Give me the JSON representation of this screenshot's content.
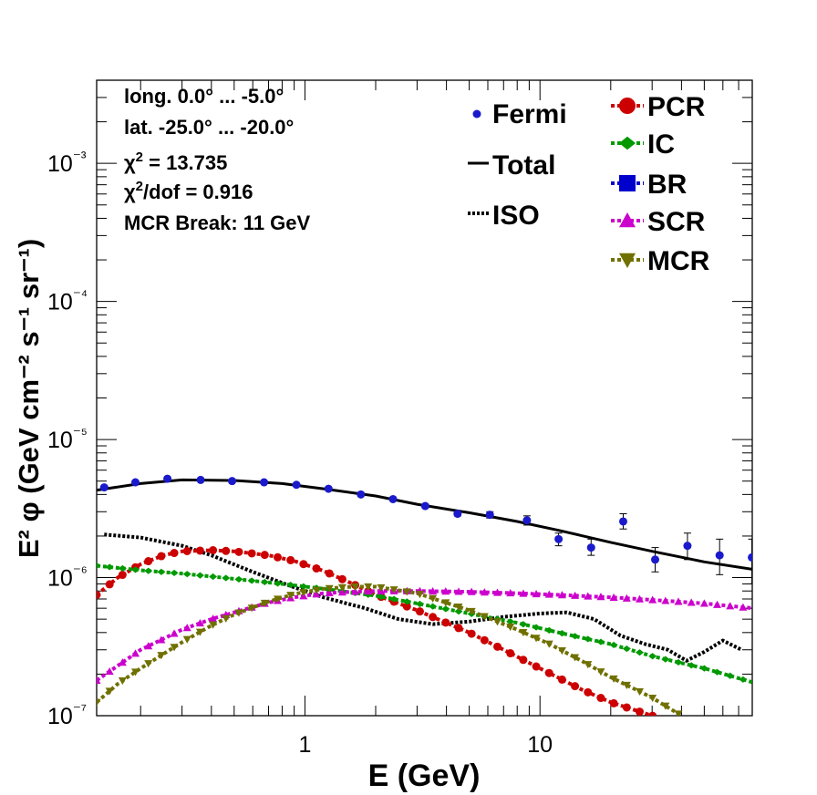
{
  "chart_data": {
    "type": "scatter",
    "title": "",
    "xlabel": "E (GeV)",
    "ylabel": "E² φ (GeV cm⁻² s⁻¹ sr⁻¹)",
    "x_scale": "log",
    "y_scale": "log",
    "xlim": [
      0.13,
      80
    ],
    "ylim": [
      1e-07,
      0.004
    ],
    "x_tick_labels": [
      "1",
      "10"
    ],
    "y_tick_labels": [
      "10⁻⁷",
      "10⁻⁶",
      "10⁻⁵",
      "10⁻⁴",
      "10⁻³"
    ],
    "grid": false,
    "annotations": [
      "long. 0.0° ... -5.0°",
      "lat. -25.0° ... -20.0°",
      "χ² = 13.735",
      "χ²/dof = 0.916",
      "MCR Break: 11 GeV"
    ],
    "legend": {
      "placement": "top-right",
      "entries": [
        "Fermi",
        "Total",
        "ISO",
        "PCR",
        "IC",
        "BR",
        "SCR",
        "MCR"
      ]
    },
    "colors": {
      "Fermi": "#1a1acc",
      "Total": "#000000",
      "ISO": "#000000",
      "PCR": "#cc0000",
      "IC": "#009900",
      "BR": "#0000cc",
      "SCR": "#cc00cc",
      "MCR": "#707000"
    },
    "fermi": {
      "x": [
        0.14,
        0.19,
        0.26,
        0.36,
        0.49,
        0.67,
        0.92,
        1.26,
        1.73,
        2.37,
        3.25,
        4.46,
        6.12,
        8.8,
        12.0,
        16.5,
        22.6,
        30.9,
        42.4,
        58.1,
        79.7
      ],
      "y": [
        4.5e-06,
        4.9e-06,
        5.2e-06,
        5.1e-06,
        5e-06,
        4.9e-06,
        4.7e-06,
        4.4e-06,
        4e-06,
        3.7e-06,
        3.3e-06,
        2.9e-06,
        2.85e-06,
        2.6e-06,
        1.9e-06,
        1.65e-06,
        2.55e-06,
        1.35e-06,
        1.7e-06,
        1.45e-06,
        1.4e-06
      ],
      "err_low": [
        1e-07,
        1e-07,
        1e-07,
        1e-07,
        1e-07,
        1e-07,
        1e-07,
        1e-07,
        1e-07,
        1e-07,
        1e-07,
        1e-07,
        1.5e-07,
        2e-07,
        2e-07,
        2e-07,
        3e-07,
        2.5e-07,
        3.5e-07,
        4e-07,
        5e-07
      ],
      "err_high": [
        1e-07,
        1e-07,
        1e-07,
        1e-07,
        1e-07,
        1e-07,
        1e-07,
        1e-07,
        1e-07,
        1e-07,
        1e-07,
        1e-07,
        1.5e-07,
        2e-07,
        2e-07,
        2.5e-07,
        3.5e-07,
        3e-07,
        4e-07,
        4.5e-07,
        5e-07
      ]
    },
    "series": [
      {
        "name": "Total",
        "style": "solid",
        "x": [
          0.13,
          0.2,
          0.3,
          0.5,
          0.8,
          1.2,
          2,
          3,
          5,
          8,
          12,
          20,
          30,
          50,
          80
        ],
        "y": [
          4.3e-06,
          4.8e-06,
          5.1e-06,
          5.05e-06,
          4.8e-06,
          4.4e-06,
          3.9e-06,
          3.4e-06,
          2.95e-06,
          2.55e-06,
          2.2e-06,
          1.8e-06,
          1.55e-06,
          1.3e-06,
          1.15e-06
        ]
      },
      {
        "name": "ISO",
        "style": "dotted",
        "x": [
          0.14,
          0.2,
          0.3,
          0.4,
          0.6,
          0.9,
          1.2,
          1.8,
          2.5,
          3.5,
          5,
          7,
          10,
          13,
          17,
          22,
          28,
          35,
          42,
          50,
          60,
          72
        ],
        "y": [
          2.05e-06,
          1.95e-06,
          1.7e-06,
          1.45e-06,
          1.1e-06,
          8.5e-07,
          7.2e-07,
          6e-07,
          5e-07,
          4.6e-07,
          4.8e-07,
          5.2e-07,
          5.5e-07,
          5.6e-07,
          5e-07,
          3.8e-07,
          3.3e-07,
          3e-07,
          2.5e-07,
          2.9e-07,
          3.5e-07,
          3e-07
        ]
      },
      {
        "name": "PCR",
        "style": "marker-line",
        "x": [
          0.13,
          0.16,
          0.2,
          0.25,
          0.3,
          0.4,
          0.5,
          0.7,
          0.9,
          1.2,
          1.6,
          2,
          3,
          4,
          5,
          7,
          10,
          15,
          20,
          30,
          40
        ],
        "y": [
          7.5e-07,
          1e-06,
          1.25e-06,
          1.45e-06,
          1.55e-06,
          1.58e-06,
          1.55e-06,
          1.45e-06,
          1.32e-06,
          1.12e-06,
          9e-07,
          7.5e-07,
          5.8e-07,
          4.7e-07,
          4e-07,
          3e-07,
          2.2e-07,
          1.55e-07,
          1.25e-07,
          1e-07,
          8.5e-08
        ]
      },
      {
        "name": "IC",
        "style": "marker-line",
        "x": [
          0.13,
          0.2,
          0.3,
          0.5,
          0.8,
          1.2,
          2,
          3,
          5,
          8,
          12,
          20,
          30,
          50,
          80
        ],
        "y": [
          1.22e-06,
          1.13e-06,
          1.07e-06,
          9.8e-07,
          9e-07,
          8.3e-07,
          7.4e-07,
          6.5e-07,
          5.5e-07,
          4.7e-07,
          4e-07,
          3.3e-07,
          2.7e-07,
          2.2e-07,
          1.75e-07
        ]
      },
      {
        "name": "SCR",
        "style": "marker-line",
        "x": [
          0.13,
          0.16,
          0.2,
          0.25,
          0.3,
          0.4,
          0.5,
          0.7,
          0.9,
          1.2,
          1.6,
          2,
          3,
          5,
          8,
          12,
          20,
          30,
          50,
          80
        ],
        "y": [
          1.8e-07,
          2.3e-07,
          3e-07,
          3.6e-07,
          4.2e-07,
          5e-07,
          5.6e-07,
          6.6e-07,
          7.2e-07,
          7.7e-07,
          7.9e-07,
          8e-07,
          8e-07,
          7.9e-07,
          7.7e-07,
          7.5e-07,
          7.2e-07,
          6.9e-07,
          6.5e-07,
          6e-07
        ]
      },
      {
        "name": "MCR",
        "style": "marker-line",
        "x": [
          0.13,
          0.16,
          0.2,
          0.25,
          0.3,
          0.4,
          0.5,
          0.7,
          0.9,
          1.2,
          1.6,
          2,
          3,
          5,
          8,
          11,
          15,
          20,
          30,
          40
        ],
        "y": [
          1.25e-07,
          1.7e-07,
          2.2e-07,
          2.8e-07,
          3.4e-07,
          4.5e-07,
          5.4e-07,
          6.7e-07,
          7.6e-07,
          8.3e-07,
          8.6e-07,
          8.6e-07,
          7.7e-07,
          5.8e-07,
          4.2e-07,
          3.3e-07,
          2.5e-07,
          1.9e-07,
          1.35e-07,
          1e-07
        ]
      }
    ]
  }
}
